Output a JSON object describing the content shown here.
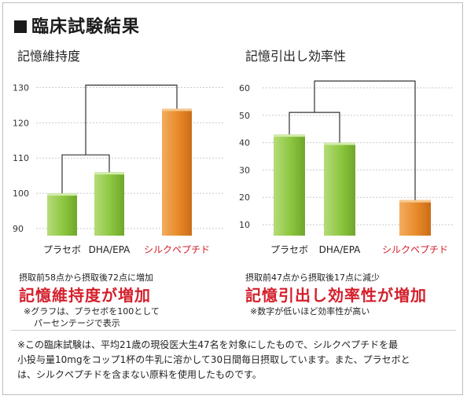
{
  "title": "臨床試験結果",
  "charts": [
    {
      "subtitle": "記憶維持度",
      "caption": "摂取前58点から摂取後72点に増加",
      "headline": "記憶維持度が増加",
      "notes": [
        "※グラフは、プラセボを100として",
        "パーセンテージで表示"
      ]
    },
    {
      "subtitle": "記憶引出し効率性",
      "caption": "摂取前47点から摂取後17点に減少",
      "headline": "記憶引出し効率性が増加",
      "notes": [
        "※数字が低いほど効率性が高い"
      ]
    }
  ],
  "footnote": [
    "※この臨床試験は、平均21歳の現役医大生47名を対象にしたもので、シルクペプチドを最",
    "小投与量10mgをコップ1杯の牛乳に溶かして30日間毎日摂取しています。また、プラセボと",
    "は、シルクペプチドを含まない原料を使用したものです。"
  ],
  "colors": {
    "green": "#8cc63f",
    "orange": "#e8892a",
    "highlight": "#d4202c"
  },
  "chart_data": [
    {
      "type": "bar",
      "categories": [
        "プラセボ",
        "DHA/EPA",
        "シルクペプチド"
      ],
      "values": [
        100,
        106,
        124
      ],
      "ylim": [
        88,
        133
      ],
      "yticks": [
        90,
        100,
        110,
        120,
        130
      ],
      "bar_colors": [
        "green",
        "green",
        "orange"
      ],
      "highlight_category": 2,
      "grid": true
    },
    {
      "type": "bar",
      "categories": [
        "プラセボ",
        "DHA/EPA",
        "シルクペプチド"
      ],
      "values": [
        43,
        40,
        19
      ],
      "ylim": [
        6,
        64
      ],
      "yticks": [
        10,
        20,
        30,
        40,
        50,
        60
      ],
      "bar_colors": [
        "green",
        "green",
        "orange"
      ],
      "highlight_category": 2,
      "grid": true
    }
  ]
}
